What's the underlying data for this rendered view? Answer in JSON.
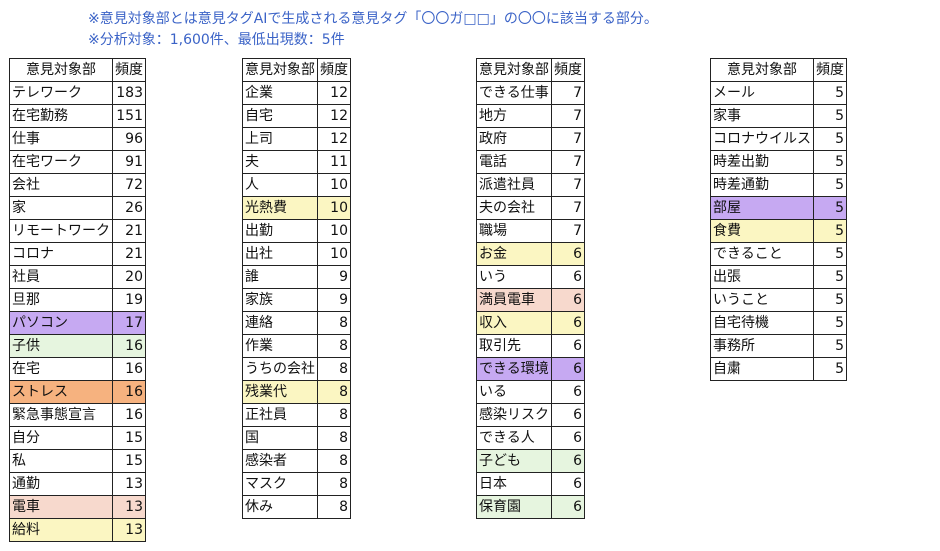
{
  "notes": [
    "※意見対象部とは意見タグAIで生成される意見タグ「〇〇ガ□□」の〇〇に該当する部分。",
    "※分析対象：1,600件、最低出現数：5件"
  ],
  "header": {
    "term": "意見対象部",
    "count": "頻度"
  },
  "colors": {
    "note_text": "#3b63c7",
    "purple": "#c6a9f2",
    "yellow": "#fbf6c2",
    "green": "#e6f5df",
    "pink": "#f7d9cd",
    "orange": "#f6b27f"
  },
  "tables": [
    [
      {
        "term": "テレワーク",
        "count": "183"
      },
      {
        "term": "在宅勤務",
        "count": "151"
      },
      {
        "term": "仕事",
        "count": "96"
      },
      {
        "term": "在宅ワーク",
        "count": "91"
      },
      {
        "term": "会社",
        "count": "72"
      },
      {
        "term": "家",
        "count": "26"
      },
      {
        "term": "リモートワーク",
        "count": "21"
      },
      {
        "term": "コロナ",
        "count": "21"
      },
      {
        "term": "社員",
        "count": "20"
      },
      {
        "term": "旦那",
        "count": "19"
      },
      {
        "term": "パソコン",
        "count": "17",
        "hl": "purple"
      },
      {
        "term": "子供",
        "count": "16",
        "hl": "green"
      },
      {
        "term": "在宅",
        "count": "16"
      },
      {
        "term": "ストレス",
        "count": "16",
        "hl": "orange"
      },
      {
        "term": "緊急事態宣言",
        "count": "16"
      },
      {
        "term": "自分",
        "count": "15"
      },
      {
        "term": "私",
        "count": "15"
      },
      {
        "term": "通勤",
        "count": "13"
      },
      {
        "term": "電車",
        "count": "13",
        "hl": "pink"
      },
      {
        "term": "給料",
        "count": "13",
        "hl": "yellow"
      }
    ],
    [
      {
        "term": "企業",
        "count": "12"
      },
      {
        "term": "自宅",
        "count": "12"
      },
      {
        "term": "上司",
        "count": "12"
      },
      {
        "term": "夫",
        "count": "11"
      },
      {
        "term": "人",
        "count": "10"
      },
      {
        "term": "光熱費",
        "count": "10",
        "hl": "yellow"
      },
      {
        "term": "出勤",
        "count": "10"
      },
      {
        "term": "出社",
        "count": "10"
      },
      {
        "term": "誰",
        "count": "9"
      },
      {
        "term": "家族",
        "count": "9"
      },
      {
        "term": "連絡",
        "count": "8"
      },
      {
        "term": "作業",
        "count": "8"
      },
      {
        "term": "うちの会社",
        "count": "8"
      },
      {
        "term": "残業代",
        "count": "8",
        "hl": "yellow"
      },
      {
        "term": "正社員",
        "count": "8"
      },
      {
        "term": "国",
        "count": "8"
      },
      {
        "term": "感染者",
        "count": "8"
      },
      {
        "term": "マスク",
        "count": "8"
      },
      {
        "term": "休み",
        "count": "8"
      }
    ],
    [
      {
        "term": "できる仕事",
        "count": "7"
      },
      {
        "term": "地方",
        "count": "7"
      },
      {
        "term": "政府",
        "count": "7"
      },
      {
        "term": "電話",
        "count": "7"
      },
      {
        "term": "派遣社員",
        "count": "7"
      },
      {
        "term": "夫の会社",
        "count": "7"
      },
      {
        "term": "職場",
        "count": "7"
      },
      {
        "term": "お金",
        "count": "6",
        "hl": "yellow"
      },
      {
        "term": "いう",
        "count": "6"
      },
      {
        "term": "満員電車",
        "count": "6",
        "hl": "pink"
      },
      {
        "term": "収入",
        "count": "6",
        "hl": "yellow"
      },
      {
        "term": "取引先",
        "count": "6"
      },
      {
        "term": "できる環境",
        "count": "6",
        "hl": "purple"
      },
      {
        "term": "いる",
        "count": "6"
      },
      {
        "term": "感染リスク",
        "count": "6"
      },
      {
        "term": "できる人",
        "count": "6"
      },
      {
        "term": "子ども",
        "count": "6",
        "hl": "green"
      },
      {
        "term": "日本",
        "count": "6"
      },
      {
        "term": "保育園",
        "count": "6",
        "hl": "green"
      }
    ],
    [
      {
        "term": "メール",
        "count": "5"
      },
      {
        "term": "家事",
        "count": "5"
      },
      {
        "term": "コロナウイルス",
        "count": "5"
      },
      {
        "term": "時差出勤",
        "count": "5"
      },
      {
        "term": "時差通勤",
        "count": "5"
      },
      {
        "term": "部屋",
        "count": "5",
        "hl": "purple"
      },
      {
        "term": "食費",
        "count": "5",
        "hl": "yellow"
      },
      {
        "term": "できること",
        "count": "5"
      },
      {
        "term": "出張",
        "count": "5"
      },
      {
        "term": "いうこと",
        "count": "5"
      },
      {
        "term": "自宅待機",
        "count": "5"
      },
      {
        "term": "事務所",
        "count": "5"
      },
      {
        "term": "自粛",
        "count": "5"
      }
    ]
  ]
}
